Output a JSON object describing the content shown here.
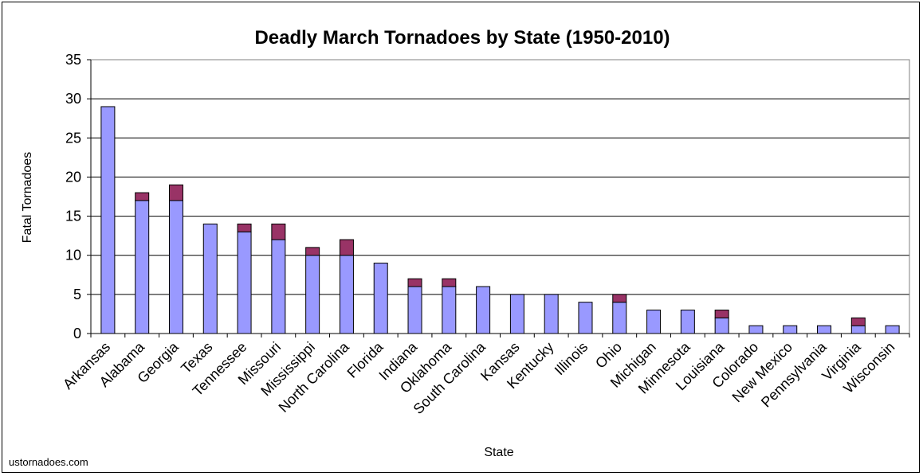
{
  "chart_data": {
    "type": "bar",
    "stacked": true,
    "title": "Deadly March Tornadoes by State (1950-2010)",
    "xlabel": "State",
    "ylabel": "Fatal Tornadoes",
    "ylim": [
      0,
      35
    ],
    "yticks": [
      0,
      5,
      10,
      15,
      20,
      25,
      30,
      35
    ],
    "grid": true,
    "categories": [
      "Arkansas",
      "Alabama",
      "Georgia",
      "Texas",
      "Tennessee",
      "Missouri",
      "Mississippi",
      "North Carolina",
      "Florida",
      "Indiana",
      "Oklahoma",
      "South Carolina",
      "Kansas",
      "Kentucky",
      "Illinois",
      "Ohio",
      "Michigan",
      "Minnesota",
      "Louisiana",
      "Colorado",
      "New Mexico",
      "Pennsylvania",
      "Virginia",
      "Wisconsin"
    ],
    "series": [
      {
        "color": "#9999ff",
        "values": [
          29,
          17,
          17,
          14,
          13,
          12,
          10,
          10,
          9,
          6,
          6,
          6,
          5,
          5,
          4,
          4,
          3,
          3,
          2,
          1,
          1,
          1,
          1,
          1
        ]
      },
      {
        "color": "#993366",
        "values": [
          0,
          1,
          2,
          0,
          1,
          2,
          1,
          2,
          0,
          1,
          1,
          0,
          0,
          0,
          0,
          1,
          0,
          0,
          1,
          0,
          0,
          0,
          1,
          0
        ]
      }
    ]
  },
  "footer": {
    "source": "ustornadoes.com"
  }
}
